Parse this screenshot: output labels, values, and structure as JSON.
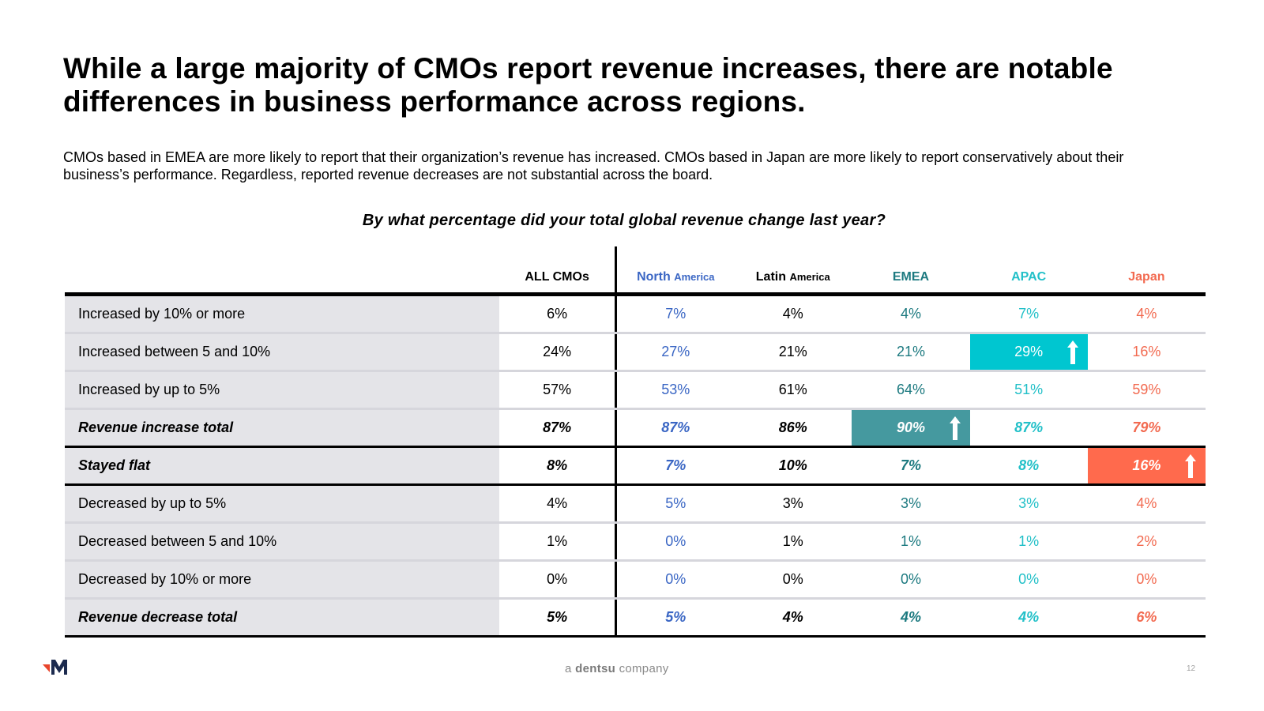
{
  "title": "While a large majority of CMOs report revenue increases, there are notable differences in business performance across regions.",
  "subtitle": "CMOs based in EMEA are more likely to report that their organization’s revenue has increased. CMOs based in Japan are more likely to report conservatively about their business’s performance. Regardless, reported revenue decreases are not substantial across the board.",
  "question": "By what percentage did your total global revenue change last year?",
  "colors": {
    "all": "#000000",
    "north_america": "#3a66c4",
    "latin_america": "#000000",
    "emea": "#1d7a80",
    "apac": "#22c0c8",
    "japan": "#f26a50",
    "highlight_apac": "#00c6d0",
    "highlight_emea": "#45999f",
    "highlight_japan": "#ff6a4d",
    "label_bg": "#e4e4e8"
  },
  "table": {
    "columns": [
      {
        "key": "all",
        "main": "ALL CMOs",
        "sub": ""
      },
      {
        "key": "north_america",
        "main": "North",
        "sub": "America"
      },
      {
        "key": "latin_america",
        "main": "Latin",
        "sub": "America"
      },
      {
        "key": "emea",
        "main": "EMEA",
        "sub": ""
      },
      {
        "key": "apac",
        "main": "APAC",
        "sub": ""
      },
      {
        "key": "japan",
        "main": "Japan",
        "sub": ""
      }
    ],
    "rows": [
      {
        "label": "Increased by 10% or more",
        "values": [
          "6%",
          "7%",
          "4%",
          "4%",
          "7%",
          "4%"
        ]
      },
      {
        "label": "Increased between 5 and 10%",
        "values": [
          "24%",
          "27%",
          "21%",
          "21%",
          "29%",
          "16%"
        ]
      },
      {
        "label": "Increased by up to 5%",
        "values": [
          "57%",
          "53%",
          "61%",
          "64%",
          "51%",
          "59%"
        ]
      },
      {
        "label": "Revenue increase total",
        "values": [
          "87%",
          "87%",
          "86%",
          "90%",
          "87%",
          "79%"
        ]
      },
      {
        "label": "Stayed flat",
        "values": [
          "8%",
          "7%",
          "10%",
          "7%",
          "8%",
          "16%"
        ]
      },
      {
        "label": "Decreased by up to 5%",
        "values": [
          "4%",
          "5%",
          "3%",
          "3%",
          "3%",
          "4%"
        ]
      },
      {
        "label": "Decreased between 5 and 10%",
        "values": [
          "1%",
          "0%",
          "1%",
          "1%",
          "1%",
          "2%"
        ]
      },
      {
        "label": "Decreased by 10% or more",
        "values": [
          "0%",
          "0%",
          "0%",
          "0%",
          "0%",
          "0%"
        ]
      },
      {
        "label": "Revenue decrease total",
        "values": [
          "5%",
          "5%",
          "4%",
          "4%",
          "4%",
          "6%"
        ]
      }
    ],
    "highlights": [
      {
        "row": 1,
        "col": "apac",
        "icon": "arrow-up-icon"
      },
      {
        "row": 3,
        "col": "emea",
        "icon": "arrow-up-icon"
      },
      {
        "row": 4,
        "col": "japan",
        "icon": "arrow-up-icon"
      }
    ]
  },
  "footer": {
    "brand_prefix": "a",
    "brand_name": "dentsu",
    "brand_suffix": "company",
    "page_number": "12",
    "logo_icon": "merkle-m-logo-icon"
  }
}
